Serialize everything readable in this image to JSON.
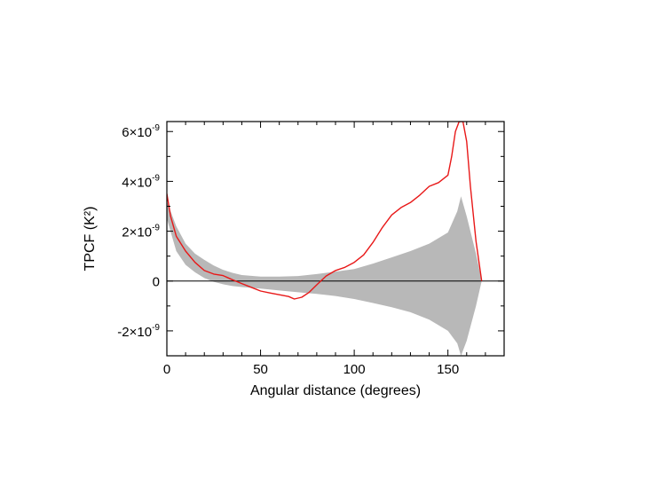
{
  "chart_data": {
    "type": "line",
    "title": "",
    "xlabel": "Angular distance (degrees)",
    "ylabel": "TPCF (K²)",
    "xlim": [
      0,
      180
    ],
    "ylim": [
      -3e-09,
      6.4e-09
    ],
    "grid": false,
    "legend": "none",
    "x_ticks": [
      {
        "value": 0,
        "label": "0"
      },
      {
        "value": 50,
        "label": "50"
      },
      {
        "value": 100,
        "label": "100"
      },
      {
        "value": 150,
        "label": "150"
      }
    ],
    "y_ticks": [
      {
        "value": 6e-09,
        "mantissa": "6×10",
        "exponent": "-9"
      },
      {
        "value": 4e-09,
        "mantissa": "4×10",
        "exponent": "-9"
      },
      {
        "value": 2e-09,
        "mantissa": "2×10",
        "exponent": "-9"
      },
      {
        "value": 0,
        "mantissa": "0",
        "exponent": ""
      },
      {
        "value": -2e-09,
        "mantissa": "-2×10",
        "exponent": "-9"
      }
    ],
    "zero_line": 0,
    "band": {
      "color": "#b8b8b8",
      "x": [
        0,
        5,
        10,
        15,
        20,
        25,
        30,
        35,
        40,
        50,
        60,
        70,
        80,
        90,
        100,
        110,
        120,
        130,
        140,
        150,
        155,
        157,
        160,
        165,
        168
      ],
      "upper": [
        3.2e-09,
        2.2e-09,
        1.5e-09,
        1.1e-09,
        8.5e-10,
        6.2e-10,
        4.5e-10,
        3.3e-10,
        2.4e-10,
        1.8e-10,
        1.8e-10,
        2e-10,
        2.8e-10,
        3.8e-10,
        4.8e-10,
        7e-10,
        9.5e-10,
        1.2e-09,
        1.5e-09,
        1.95e-09,
        2.8e-09,
        3.4e-09,
        2.6e-09,
        1.1e-09,
        0.0
      ],
      "lower": [
        2.5e-09,
        1.2e-09,
        6.5e-10,
        3.5e-10,
        1.2e-10,
        -3e-11,
        -1.3e-10,
        -2e-10,
        -2.4e-10,
        -3e-10,
        -3.8e-10,
        -4.5e-10,
        -5.2e-10,
        -6e-10,
        -7.2e-10,
        -8.8e-10,
        -1.05e-09,
        -1.25e-09,
        -1.55e-09,
        -2e-09,
        -2.5e-09,
        -3e-09,
        -2.4e-09,
        -1e-09,
        0.0
      ]
    },
    "series": [
      {
        "color": "#e81818",
        "x": [
          0,
          2,
          5,
          10,
          15,
          20,
          25,
          30,
          35,
          40,
          45,
          50,
          55,
          60,
          65,
          68,
          72,
          76,
          80,
          85,
          90,
          95,
          100,
          105,
          110,
          115,
          120,
          125,
          130,
          135,
          140,
          145,
          150,
          152,
          154,
          156,
          158,
          160,
          162,
          165,
          168
        ],
        "y": [
          3.5e-09,
          2.6e-09,
          1.8e-09,
          1.2e-09,
          7.5e-10,
          4.2e-10,
          2.8e-10,
          2.2e-10,
          5e-11,
          -1e-10,
          -2.5e-10,
          -4e-10,
          -4.8e-10,
          -5.5e-10,
          -6.2e-10,
          -7.2e-10,
          -6.5e-10,
          -4.5e-10,
          -1.5e-10,
          2e-10,
          4.2e-10,
          5.5e-10,
          7.5e-10,
          1.05e-09,
          1.55e-09,
          2.15e-09,
          2.65e-09,
          2.95e-09,
          3.15e-09,
          3.45e-09,
          3.8e-09,
          3.95e-09,
          4.25e-09,
          5e-09,
          6e-09,
          6.4e-09,
          6.4e-09,
          5.6e-09,
          3.8e-09,
          1.6e-09,
          0.0
        ]
      }
    ]
  }
}
